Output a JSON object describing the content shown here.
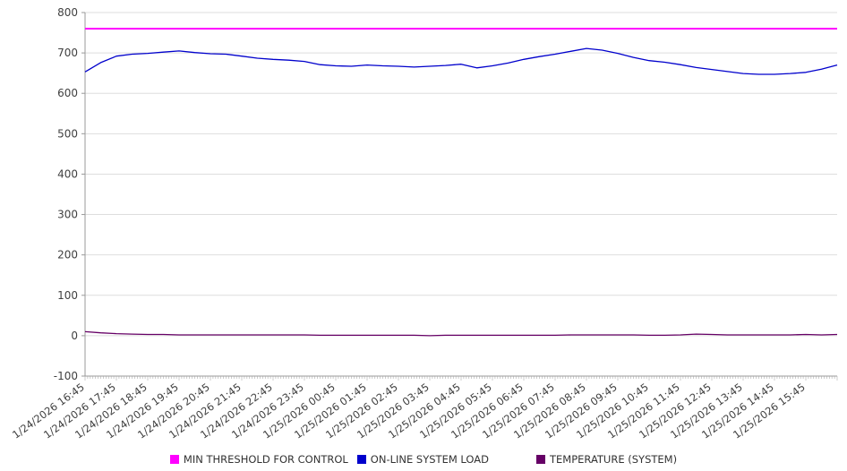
{
  "chart_data": {
    "type": "line",
    "title": "",
    "xlabel": "",
    "ylabel": "",
    "ylim": [
      -100,
      800
    ],
    "yticks": [
      800,
      700,
      600,
      500,
      400,
      300,
      200,
      100,
      0,
      -100
    ],
    "grid": "horizontal",
    "legend_position": "bottom",
    "x_labels": [
      "1/24/2026 16:45",
      "1/24/2026 17:45",
      "1/24/2026 18:45",
      "1/24/2026 19:45",
      "1/24/2026 20:45",
      "1/24/2026 21:45",
      "1/24/2026 22:45",
      "1/24/2026 23:45",
      "1/25/2026 00:45",
      "1/25/2026 01:45",
      "1/25/2026 02:45",
      "1/25/2026 03:45",
      "1/25/2026 04:45",
      "1/25/2026 05:45",
      "1/25/2026 06:45",
      "1/25/2026 07:45",
      "1/25/2026 08:45",
      "1/25/2026 09:45",
      "1/25/2026 10:45",
      "1/25/2026 11:45",
      "1/25/2026 12:45",
      "1/25/2026 13:45",
      "1/25/2026 14:45",
      "1/25/2026 15:45"
    ],
    "x_interval_minutes": 30,
    "series": [
      {
        "name": "MIN THRESHOLD FOR CONTROL",
        "color": "#ff00ff",
        "style": "constant",
        "value": 760
      },
      {
        "name": "ON-LINE SYSTEM LOAD",
        "color": "#0000cc",
        "style": "line",
        "values": [
          653,
          676,
          692,
          697,
          699,
          702,
          705,
          701,
          698,
          697,
          692,
          687,
          684,
          682,
          679,
          671,
          668,
          667,
          670,
          668,
          667,
          665,
          667,
          669,
          672,
          663,
          668,
          675,
          684,
          691,
          697,
          704,
          711,
          707,
          699,
          689,
          681,
          677,
          671,
          664,
          659,
          654,
          649,
          647,
          647,
          649,
          652,
          660,
          670
        ]
      },
      {
        "name": "TEMPERATURE (SYSTEM)",
        "color": "#660066",
        "style": "line",
        "values": [
          10,
          7,
          5,
          4,
          3,
          3,
          2,
          2,
          2,
          2,
          2,
          2,
          2,
          2,
          2,
          1,
          1,
          1,
          1,
          1,
          1,
          1,
          0,
          1,
          1,
          1,
          1,
          1,
          1,
          1,
          1,
          2,
          2,
          2,
          2,
          2,
          1,
          1,
          2,
          4,
          3,
          2,
          2,
          2,
          2,
          2,
          3,
          2,
          3
        ]
      }
    ]
  },
  "legend": {
    "items": [
      {
        "label": "MIN THRESHOLD FOR CONTROL",
        "color": "#ff00ff"
      },
      {
        "label": "ON-LINE SYSTEM LOAD",
        "color": "#0000cc"
      },
      {
        "label": "TEMPERATURE (SYSTEM)",
        "color": "#660066"
      }
    ]
  }
}
